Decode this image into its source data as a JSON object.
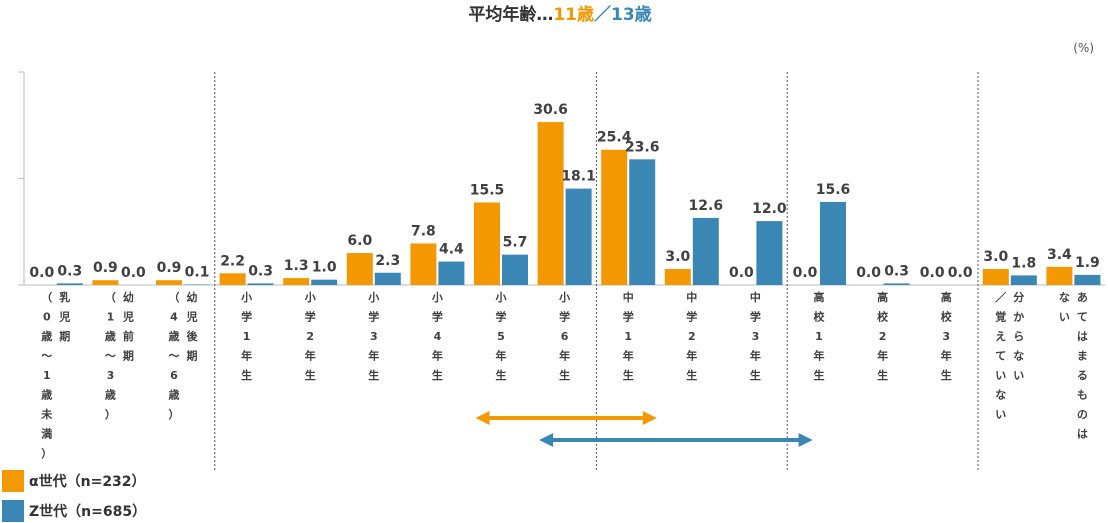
{
  "title": {
    "prefix": "平均年齢…",
    "alpha_age": "11歳",
    "separator": "／",
    "z_age": "13歳"
  },
  "unit": "(%)",
  "colors": {
    "alpha": "#F39800",
    "z": "#3A87B5",
    "alpha_text": "#F39800",
    "z_text": "#3A87B5"
  },
  "legend": [
    {
      "label": "α世代（n=232）",
      "color": "#F39800"
    },
    {
      "label": "Z世代（n=685）",
      "color": "#3A87B5"
    }
  ],
  "chart_data": {
    "type": "bar",
    "categories": [
      "（0歳～1歳未満）乳児期",
      "（1歳～3歳）幼児前期",
      "（4歳～6歳）幼児後期",
      "小学1年生",
      "小学2年生",
      "小学3年生",
      "小学4年生",
      "小学5年生",
      "小学6年生",
      "中学1年生",
      "中学2年生",
      "中学3年生",
      "高校1年生",
      "高校2年生",
      "高校3年生",
      "分からない／覚えていない",
      "あてはまるものはない"
    ],
    "category_columns": [
      [
        "（0歳～1歳未満）",
        "乳児期"
      ],
      [
        "（1歳～3歳）",
        "幼児前期"
      ],
      [
        "（4歳～6歳）",
        "幼児後期"
      ],
      [
        "小学1年生"
      ],
      [
        "小学2年生"
      ],
      [
        "小学3年生"
      ],
      [
        "小学4年生"
      ],
      [
        "小学5年生"
      ],
      [
        "小学6年生"
      ],
      [
        "中学1年生"
      ],
      [
        "中学2年生"
      ],
      [
        "中学3年生"
      ],
      [
        "高校1年生"
      ],
      [
        "高校2年生"
      ],
      [
        "高校3年生"
      ],
      [
        "／覚えていない",
        "分からない"
      ],
      [
        "ない",
        "あてはまるものは"
      ]
    ],
    "series": [
      {
        "name": "α世代（n=232）",
        "values": [
          0.0,
          0.9,
          0.9,
          2.2,
          1.3,
          6.0,
          7.8,
          15.5,
          30.6,
          25.4,
          3.0,
          0.0,
          0.0,
          0.0,
          0.0,
          3.0,
          3.4
        ]
      },
      {
        "name": "Z世代（n=685）",
        "values": [
          0.3,
          0.0,
          0.1,
          0.3,
          1.0,
          2.3,
          4.4,
          5.7,
          18.1,
          23.6,
          12.6,
          12.0,
          15.6,
          0.3,
          0.0,
          1.8,
          1.9
        ]
      }
    ],
    "value_labels": [
      [
        "0.0",
        "0.9",
        "0.9",
        "2.2",
        "1.3",
        "6.0",
        "7.8",
        "15.5",
        "30.6",
        "25.4",
        "3.0",
        "0.0",
        "0.0",
        "0.0",
        "0.0",
        "3.0",
        "3.4"
      ],
      [
        "0.3",
        "0.0",
        "0.1",
        "0.3",
        "1.0",
        "2.3",
        "4.4",
        "5.7",
        "18.1",
        "23.6",
        "12.6",
        "12.0",
        "15.6",
        "0.3",
        "0.0",
        "1.8",
        "1.9"
      ]
    ],
    "ylim": [
      0,
      40
    ],
    "yticks": [
      0,
      20,
      40
    ],
    "group_separators_after": [
      2,
      8,
      11,
      14
    ],
    "ranges": [
      {
        "series": "α世代",
        "from": "小学5年生",
        "to": "中学1年生"
      },
      {
        "series": "Z世代",
        "from": "小学6年生",
        "to": "高校1年生"
      }
    ]
  }
}
